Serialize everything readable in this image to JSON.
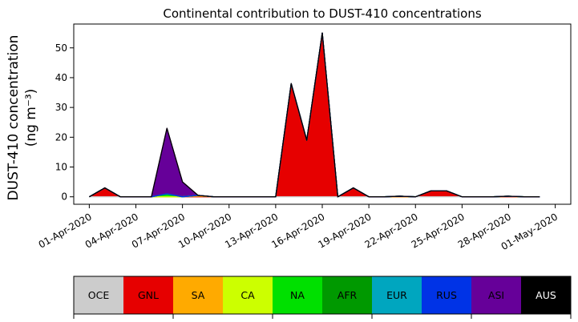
{
  "chart_data": {
    "type": "area",
    "stacked": true,
    "title": "Continental contribution to DUST-410 concentrations",
    "ylabel": "DUST-410 concentration",
    "ylabel_unit": "(ng m⁻³)",
    "xlabel": "",
    "x_tick_labels": [
      "01-Apr-2020",
      "04-Apr-2020",
      "07-Apr-2020",
      "10-Apr-2020",
      "13-Apr-2020",
      "16-Apr-2020",
      "19-Apr-2020",
      "22-Apr-2020",
      "25-Apr-2020",
      "28-Apr-2020",
      "01-May-2020"
    ],
    "y_ticks": [
      0,
      10,
      20,
      30,
      40,
      50
    ],
    "ylim": [
      -2.5,
      58
    ],
    "xlim": [
      "31-Mar-2020",
      "02-May-2020"
    ],
    "x": [
      "01-Apr-2020",
      "02-Apr-2020",
      "03-Apr-2020",
      "04-Apr-2020",
      "05-Apr-2020",
      "06-Apr-2020",
      "07-Apr-2020",
      "08-Apr-2020",
      "09-Apr-2020",
      "10-Apr-2020",
      "11-Apr-2020",
      "12-Apr-2020",
      "13-Apr-2020",
      "14-Apr-2020",
      "15-Apr-2020",
      "16-Apr-2020",
      "17-Apr-2020",
      "18-Apr-2020",
      "19-Apr-2020",
      "20-Apr-2020",
      "21-Apr-2020",
      "22-Apr-2020",
      "23-Apr-2020",
      "24-Apr-2020",
      "25-Apr-2020",
      "26-Apr-2020",
      "27-Apr-2020",
      "28-Apr-2020",
      "29-Apr-2020",
      "30-Apr-2020"
    ],
    "series": [
      {
        "name": "OCE",
        "color": "#cccccc",
        "values": [
          0,
          0,
          0,
          0,
          0,
          0,
          0,
          0,
          0,
          0,
          0,
          0,
          0,
          0,
          0,
          0,
          0,
          0,
          0,
          0,
          0,
          0,
          0,
          0,
          0,
          0,
          0,
          0,
          0,
          0
        ]
      },
      {
        "name": "GNL",
        "color": "#e60000",
        "values": [
          0,
          3,
          0,
          0,
          0,
          0,
          0,
          0,
          0,
          0,
          0,
          0,
          0,
          38,
          19,
          55,
          0,
          3,
          0,
          0,
          0,
          0,
          2,
          2,
          0,
          0,
          0,
          0,
          0,
          0
        ]
      },
      {
        "name": "SA",
        "color": "#ffaa00",
        "values": [
          0,
          0,
          0,
          0,
          0,
          0,
          0,
          0.2,
          0,
          0,
          0,
          0,
          0,
          0,
          0,
          0,
          0,
          0,
          0,
          0,
          0,
          0,
          0,
          0,
          0,
          0,
          0,
          0.1,
          0,
          0
        ]
      },
      {
        "name": "CA",
        "color": "#ccff00",
        "values": [
          0,
          0,
          0,
          0,
          0,
          0,
          0,
          0.3,
          0,
          0,
          0,
          0,
          0,
          0,
          0,
          0,
          0,
          0,
          0,
          0,
          0.2,
          0,
          0,
          0,
          0,
          0,
          0,
          0.1,
          0,
          0
        ]
      },
      {
        "name": "NA",
        "color": "#00e000",
        "values": [
          0,
          0,
          0,
          0,
          0,
          1,
          0,
          0,
          0,
          0,
          0,
          0,
          0,
          0,
          0,
          0,
          0,
          0,
          0,
          0,
          0,
          0,
          0,
          0,
          0,
          0,
          0,
          0,
          0,
          0
        ]
      },
      {
        "name": "AFR",
        "color": "#009900",
        "values": [
          0,
          0,
          0,
          0,
          0,
          0,
          0,
          0,
          0,
          0,
          0,
          0,
          0,
          0,
          0,
          0,
          0,
          0,
          0,
          0,
          0,
          0,
          0,
          0,
          0,
          0,
          0,
          0,
          0,
          0
        ]
      },
      {
        "name": "EUR",
        "color": "#00a6bf",
        "values": [
          0,
          0,
          0,
          0,
          0,
          0,
          0,
          0,
          0,
          0,
          0,
          0,
          0,
          0,
          0,
          0,
          0,
          0,
          0,
          0,
          0,
          0,
          0,
          0,
          0,
          0,
          0,
          0,
          0,
          0
        ]
      },
      {
        "name": "RUS",
        "color": "#0033e6",
        "values": [
          0,
          0,
          0,
          0,
          0,
          0,
          0,
          0,
          0,
          0,
          0,
          0,
          0,
          0,
          0,
          0,
          0,
          0,
          0,
          0,
          0,
          0,
          0,
          0,
          0,
          0,
          0,
          0,
          0,
          0
        ]
      },
      {
        "name": "ASI",
        "color": "#660099",
        "values": [
          0,
          0,
          0,
          0,
          0,
          22,
          5,
          0,
          0,
          0,
          0,
          0,
          0,
          0,
          0,
          0,
          0,
          0,
          0,
          0,
          0,
          0,
          0,
          0,
          0,
          0,
          0,
          0,
          0,
          0
        ]
      },
      {
        "name": "AUS",
        "color": "#000000",
        "values": [
          0,
          0,
          0,
          0,
          0,
          0,
          0,
          0,
          0,
          0,
          0,
          0,
          0,
          0,
          0,
          0,
          0,
          0,
          0,
          0,
          0,
          0,
          0,
          0,
          0,
          0,
          0,
          0,
          0,
          0
        ]
      }
    ],
    "grid": false,
    "legend": {
      "placement": "bottom colorbar",
      "entries": [
        "OCE",
        "GNL",
        "SA",
        "CA",
        "NA",
        "AFR",
        "EUR",
        "RUS",
        "ASI",
        "AUS"
      ],
      "text_colors": [
        "#000000",
        "#000000",
        "#000000",
        "#000000",
        "#000000",
        "#000000",
        "#000000",
        "#000000",
        "#000000",
        "#ffffff"
      ]
    }
  }
}
